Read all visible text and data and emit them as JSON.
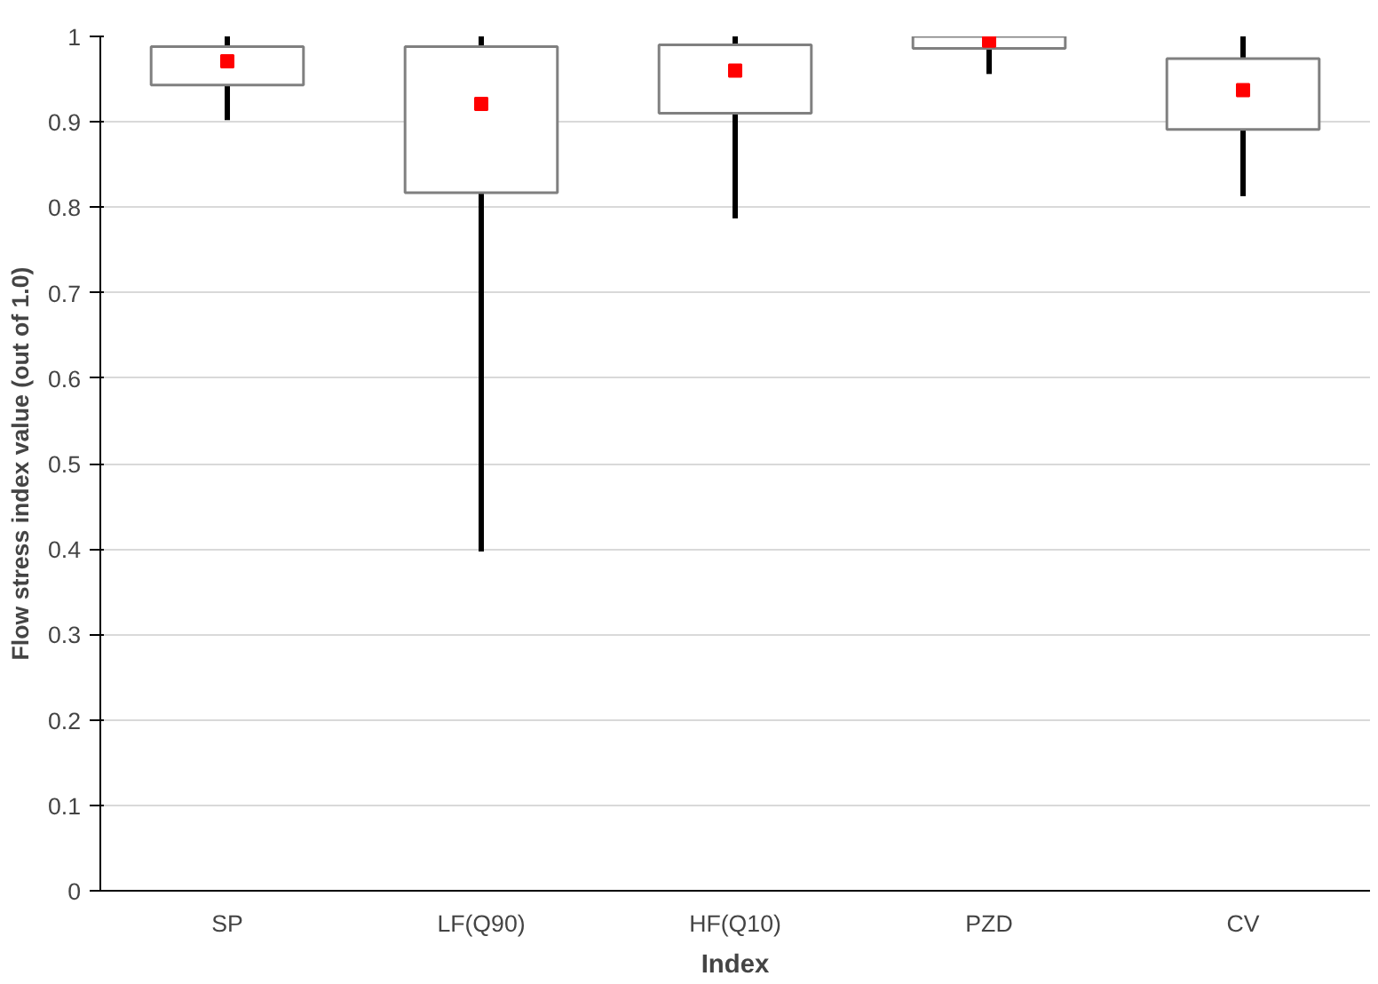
{
  "chart_data": {
    "type": "box",
    "xlabel": "Index",
    "ylabel": "Flow stress index value (out of 1.0)",
    "categories": [
      "SP",
      "LF(Q90)",
      "HF(Q10)",
      "PZD",
      "CV"
    ],
    "boxes": [
      {
        "low": 0.902,
        "q1": 0.943,
        "q3": 0.988,
        "high": 1.0,
        "mean": 0.971
      },
      {
        "low": 0.397,
        "q1": 0.817,
        "q3": 0.988,
        "high": 1.0,
        "mean": 0.921
      },
      {
        "low": 0.787,
        "q1": 0.91,
        "q3": 0.99,
        "high": 1.0,
        "mean": 0.96
      },
      {
        "low": 0.956,
        "q1": 0.986,
        "q3": 1.0,
        "high": 1.0,
        "mean": 0.995
      },
      {
        "low": 0.813,
        "q1": 0.891,
        "q3": 0.974,
        "high": 1.0,
        "mean": 0.937
      }
    ],
    "ylim": [
      0,
      1
    ],
    "yticks": [
      0,
      0.1,
      0.2,
      0.3,
      0.4,
      0.5,
      0.6,
      0.7,
      0.8,
      0.9,
      1
    ],
    "grid": "y"
  }
}
